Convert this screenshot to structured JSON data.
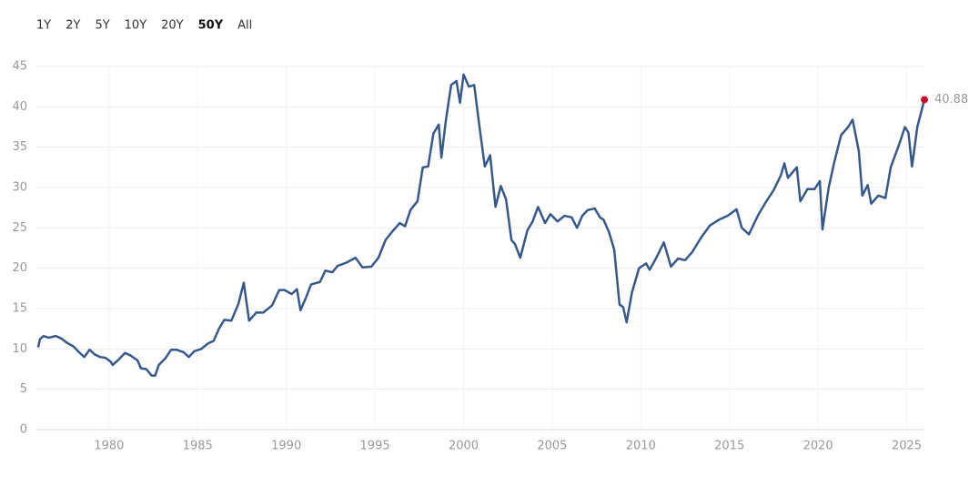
{
  "range_buttons": [
    "1Y",
    "2Y",
    "5Y",
    "10Y",
    "20Y",
    "50Y",
    "All"
  ],
  "selected_range": "50Y",
  "chart_data": {
    "type": "line",
    "x": [
      1976.0,
      1976.1,
      1976.3,
      1976.6,
      1977.0,
      1977.3,
      1977.6,
      1978.0,
      1978.3,
      1978.6,
      1978.9,
      1979.2,
      1979.5,
      1979.8,
      1980.1,
      1980.2,
      1980.5,
      1980.9,
      1981.2,
      1981.6,
      1981.8,
      1982.1,
      1982.4,
      1982.6,
      1982.8,
      1983.2,
      1983.5,
      1983.8,
      1984.2,
      1984.5,
      1984.8,
      1985.2,
      1985.6,
      1985.9,
      1986.2,
      1986.5,
      1986.9,
      1987.3,
      1987.6,
      1987.9,
      1988.3,
      1988.7,
      1989.2,
      1989.6,
      1989.9,
      1990.3,
      1990.6,
      1990.8,
      1991.1,
      1991.4,
      1991.9,
      1992.2,
      1992.6,
      1992.9,
      1993.4,
      1993.9,
      1994.3,
      1994.8,
      1995.2,
      1995.6,
      1996.0,
      1996.4,
      1996.7,
      1997.0,
      1997.4,
      1997.7,
      1998.0,
      1998.3,
      1998.6,
      1998.75,
      1999.0,
      1999.3,
      1999.6,
      1999.8,
      2000.0,
      2000.3,
      2000.6,
      2000.9,
      2001.2,
      2001.5,
      2001.8,
      2002.1,
      2002.4,
      2002.7,
      2002.9,
      2003.2,
      2003.6,
      2003.9,
      2004.2,
      2004.6,
      2004.9,
      2005.3,
      2005.7,
      2006.1,
      2006.4,
      2006.7,
      2007.0,
      2007.4,
      2007.7,
      2007.9,
      2008.2,
      2008.5,
      2008.8,
      2009.0,
      2009.2,
      2009.5,
      2009.9,
      2010.3,
      2010.5,
      2010.9,
      2011.3,
      2011.7,
      2012.1,
      2012.5,
      2012.9,
      2013.4,
      2013.9,
      2014.4,
      2014.9,
      2015.4,
      2015.7,
      2016.1,
      2016.6,
      2017.0,
      2017.5,
      2017.9,
      2018.1,
      2018.3,
      2018.8,
      2019.0,
      2019.4,
      2019.8,
      2020.1,
      2020.25,
      2020.6,
      2020.9,
      2021.3,
      2021.7,
      2021.95,
      2022.3,
      2022.5,
      2022.8,
      2023.0,
      2023.4,
      2023.8,
      2024.1,
      2024.6,
      2024.9,
      2025.1,
      2025.3,
      2025.6,
      2026.0
    ],
    "series": [
      {
        "color": "#36598a",
        "values": [
          10.2,
          11.2,
          11.6,
          11.4,
          11.6,
          11.3,
          10.8,
          10.3,
          9.6,
          9.0,
          9.9,
          9.3,
          9.0,
          8.9,
          8.4,
          8.0,
          8.6,
          9.5,
          9.2,
          8.6,
          7.6,
          7.5,
          6.7,
          6.7,
          8.0,
          8.9,
          9.9,
          9.9,
          9.6,
          9.0,
          9.7,
          10.0,
          10.7,
          11.0,
          12.5,
          13.6,
          13.5,
          15.6,
          18.2,
          13.5,
          14.5,
          14.5,
          15.4,
          17.3,
          17.3,
          16.8,
          17.4,
          14.8,
          16.3,
          18.0,
          18.3,
          19.7,
          19.5,
          20.3,
          20.7,
          21.3,
          20.1,
          20.2,
          21.3,
          23.5,
          24.6,
          25.6,
          25.2,
          27.2,
          28.3,
          32.5,
          32.6,
          36.7,
          37.8,
          33.7,
          38.3,
          42.7,
          43.2,
          40.5,
          44.0,
          42.5,
          42.7,
          37.5,
          32.6,
          34.0,
          27.6,
          30.2,
          28.5,
          23.5,
          23.0,
          21.3,
          24.7,
          25.8,
          27.6,
          25.6,
          26.7,
          25.8,
          26.5,
          26.3,
          25.0,
          26.5,
          27.2,
          27.4,
          26.3,
          26.0,
          24.5,
          22.3,
          15.5,
          15.2,
          13.3,
          17.0,
          20.0,
          20.6,
          19.8,
          21.4,
          23.2,
          20.2,
          21.2,
          21.0,
          22.0,
          23.8,
          25.3,
          26.0,
          26.5,
          27.3,
          25.0,
          24.2,
          26.5,
          28.0,
          29.7,
          31.5,
          33.0,
          31.2,
          32.5,
          28.3,
          29.8,
          29.8,
          30.8,
          24.8,
          30.0,
          33.0,
          36.5,
          37.5,
          38.4,
          34.5,
          29.0,
          30.3,
          28.0,
          29.0,
          28.7,
          32.5,
          35.5,
          37.5,
          36.8,
          32.6,
          37.5,
          40.88
        ]
      }
    ],
    "last_point_color": "#c8102e",
    "xlim": [
      1975.9,
      2026.0
    ],
    "xticks": [
      1980,
      1985,
      1990,
      1995,
      2000,
      2005,
      2010,
      2015,
      2020,
      2025
    ],
    "ylim": [
      0,
      45
    ],
    "yticks": [
      0,
      5,
      10,
      15,
      20,
      25,
      30,
      35,
      40,
      45
    ],
    "grid": true
  }
}
